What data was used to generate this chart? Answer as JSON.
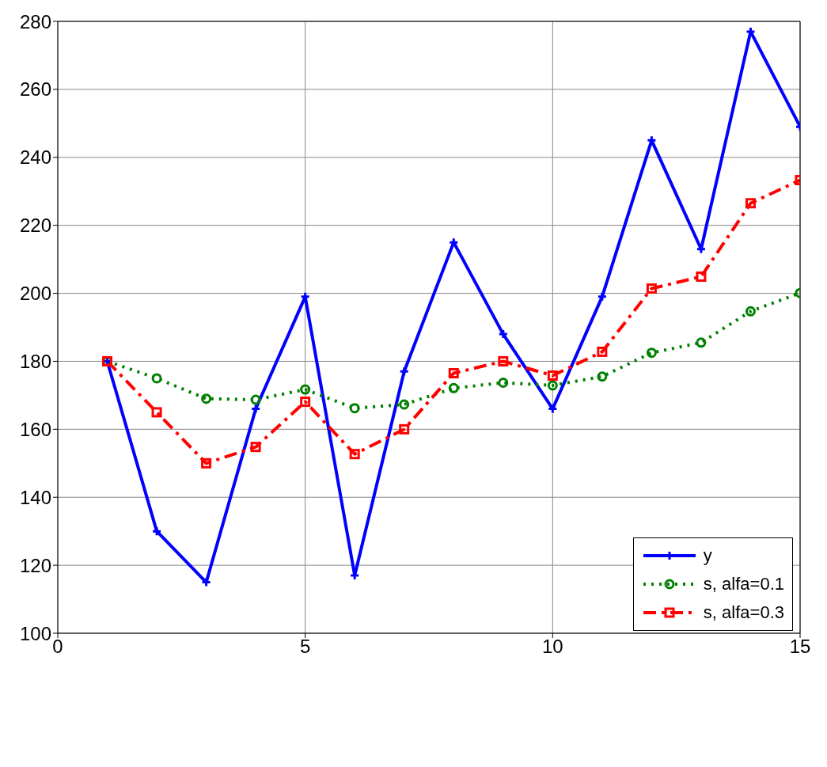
{
  "chart_data": {
    "type": "line",
    "x": [
      1,
      2,
      3,
      4,
      5,
      6,
      7,
      8,
      9,
      10,
      11,
      12,
      13,
      14,
      15
    ],
    "series": [
      {
        "name": "y",
        "color": "#0000ff",
        "marker": "cross",
        "line_style": "solid",
        "values": [
          180,
          130,
          115,
          166,
          199,
          117,
          177,
          215,
          188,
          166,
          199,
          245,
          213,
          277,
          249
        ]
      },
      {
        "name": "s, alfa=0.1",
        "color": "#008000",
        "marker": "circle",
        "line_style": "dotted",
        "values": [
          180,
          175,
          169,
          168.7,
          171.7,
          166.2,
          167.3,
          172.1,
          173.7,
          172.9,
          175.5,
          182.5,
          185.5,
          194.7,
          200.1
        ]
      },
      {
        "name": "s, alfa=0.3",
        "color": "#ff0000",
        "marker": "square",
        "line_style": "dashed",
        "values": [
          180,
          165,
          150,
          154.8,
          168.1,
          152.7,
          160,
          176.5,
          180,
          175.8,
          182.8,
          201.4,
          204.9,
          226.5,
          233.3
        ]
      }
    ],
    "xlim": [
      0,
      15
    ],
    "xticks": [
      0,
      5,
      10,
      15
    ],
    "ylim": [
      100,
      280
    ],
    "yticks": [
      100,
      120,
      140,
      160,
      180,
      200,
      220,
      240,
      260,
      280
    ],
    "grid": true,
    "legend": "bottom right"
  }
}
